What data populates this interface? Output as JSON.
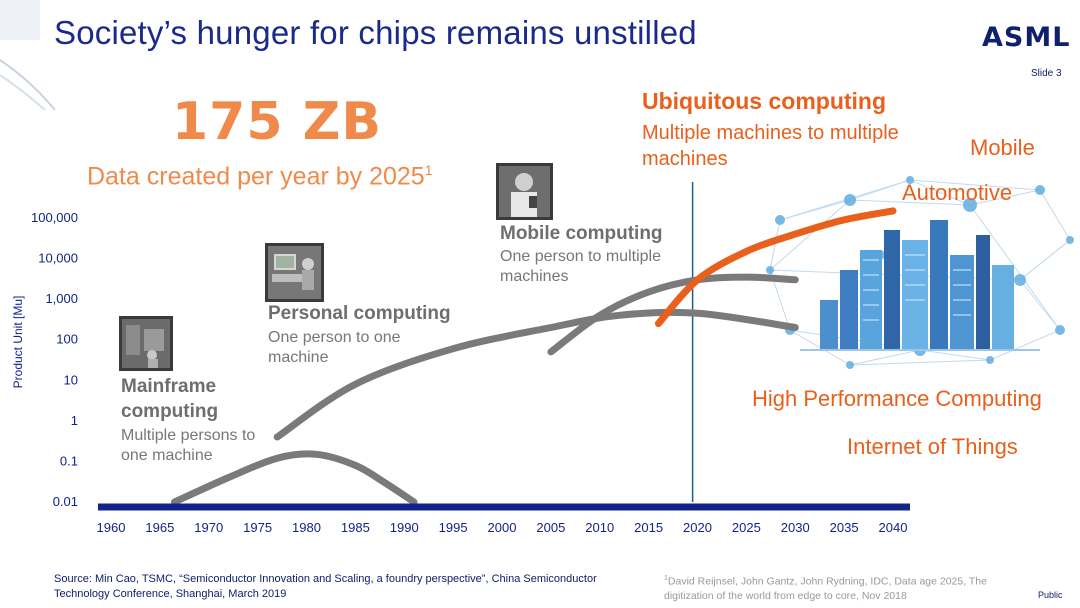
{
  "slide": {
    "title": "Society’s hunger for chips remains unstilled",
    "logo": "ASML",
    "slide_number": "Slide 3",
    "headline_value": "175 ZB",
    "headline_desc": "Data created per year by 2025",
    "headline_footnote_mark": "1",
    "eras": [
      {
        "title": "Mainframe",
        "title2": "computing",
        "desc": "Multiple persons to one machine"
      },
      {
        "title": "Personal computing",
        "desc": "One person to one machine"
      },
      {
        "title": "Mobile computing",
        "desc": "One person to multiple machines"
      }
    ],
    "ubiquitous": {
      "title": "Ubiquitous computing",
      "desc": "Multiple machines to multiple machines"
    },
    "applications": [
      "Mobile",
      "Automotive",
      "High Performance Computing",
      "Internet of Things"
    ],
    "source": "Source: Min Cao, TSMC, “Semiconductor Innovation and Scaling, a foundry perspective”, China Semiconductor Technology Conference, Shanghai, March 2019",
    "footnote_mark": "1",
    "footnote": "David Reijnsel, John Gantz, John Rydning, IDC, Data age 2025, The digitization of the world from edge to core, Nov 2018",
    "classification": "Public",
    "colors": {
      "title": "#1a2a8a",
      "accent": "#e8601c",
      "headline": "#f08a4b",
      "axis": "#12248a",
      "curve": "#7a7a7a"
    }
  },
  "chart_data": {
    "type": "line",
    "title": "",
    "xlabel": "",
    "ylabel": "Product Unit [Mu]",
    "y_scale": "log",
    "xlim": [
      1960,
      2040
    ],
    "ylim": [
      0.01,
      100000
    ],
    "x_ticks": [
      "1960",
      "1965",
      "1970",
      "1975",
      "1980",
      "1985",
      "1990",
      "1995",
      "2000",
      "2005",
      "2010",
      "2015",
      "2020",
      "2025",
      "2030",
      "2035",
      "2040"
    ],
    "y_ticks": [
      "0.01",
      "0.1",
      "1",
      "10",
      "100",
      "1,000",
      "10,000",
      "100,000"
    ],
    "reference_line_x": 2019.5,
    "series": [
      {
        "name": "Mainframe computing",
        "color": "#7a7a7a",
        "x": [
          1966.5,
          1972,
          1977,
          1981,
          1985,
          1988,
          1991
        ],
        "y": [
          0.01,
          0.04,
          0.12,
          0.15,
          0.08,
          0.03,
          0.01
        ]
      },
      {
        "name": "Personal computing",
        "color": "#7a7a7a",
        "x": [
          1977,
          1985,
          1995,
          2005,
          2012,
          2020,
          2030
        ],
        "y": [
          0.4,
          8,
          60,
          200,
          400,
          450,
          200
        ]
      },
      {
        "name": "Mobile computing",
        "color": "#7a7a7a",
        "x": [
          2005,
          2010,
          2015,
          2020,
          2025,
          2030
        ],
        "y": [
          50,
          400,
          1500,
          3000,
          3500,
          3000
        ]
      },
      {
        "name": "Ubiquitous computing",
        "color": "#e8601c",
        "x": [
          2016,
          2020,
          2025,
          2030,
          2035,
          2040
        ],
        "y": [
          250,
          3000,
          15000,
          40000,
          90000,
          150000
        ]
      }
    ]
  }
}
